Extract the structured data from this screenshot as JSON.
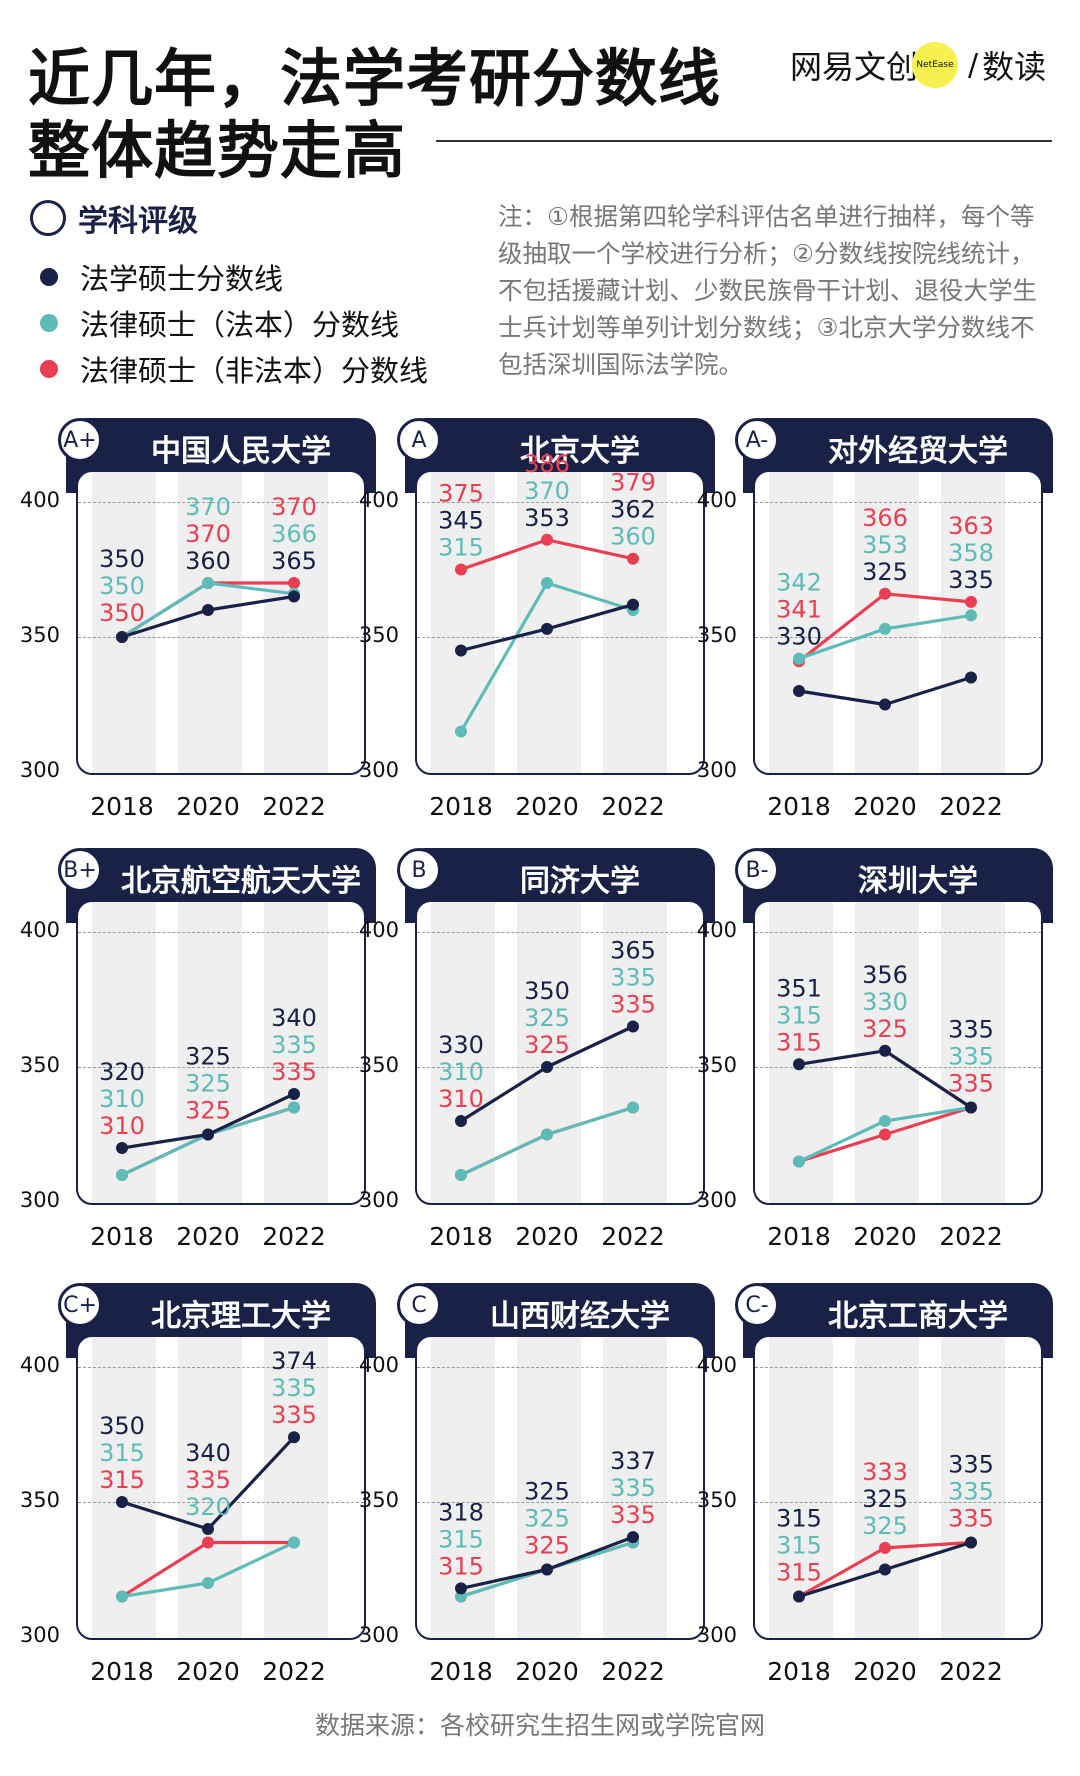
{
  "title": {
    "line1": "近几年，法学考研分数线",
    "line2": "整体趋势走高"
  },
  "brand": {
    "name": "网易文创",
    "dot": "NetEase",
    "sep": "/",
    "sub": "数读"
  },
  "legend": {
    "title": "学科评级",
    "items": [
      {
        "label": "法学硕士分数线",
        "color": "#1a2146"
      },
      {
        "label": "法律硕士（法本）分数线",
        "color": "#5ebcb8"
      },
      {
        "label": "法律硕士（非法本）分数线",
        "color": "#ea3f52"
      }
    ]
  },
  "note": "注：①根据第四轮学科评估名单进行抽样，每个等级抽取一个学校进行分析；②分数线按院线统计，不包括援藏计划、少数民族骨干计划、退役大学生士兵计划等单列计划分数线；③北京大学分数线不包括深圳国际法学院。",
  "source": "数据来源：各校研究生招生网或学院官网",
  "colors": {
    "navy": "#1a2146",
    "teal": "#5ebcb8",
    "red": "#ea3f52"
  },
  "chart_data": [
    {
      "type": "line",
      "grade": "A+",
      "title": "中国人民大学",
      "x": [
        "2018",
        "2020",
        "2022"
      ],
      "yticks": [
        400,
        350,
        300
      ],
      "ylim": [
        300,
        400
      ],
      "series": [
        {
          "name": "法学硕士分数线",
          "values": [
            350,
            360,
            365
          ]
        },
        {
          "name": "法律硕士（法本）分数线",
          "values": [
            350,
            370,
            366
          ]
        },
        {
          "name": "法律硕士（非法本）分数线",
          "values": [
            350,
            370,
            370
          ]
        }
      ]
    },
    {
      "type": "line",
      "grade": "A",
      "title": "北京大学",
      "x": [
        "2018",
        "2020",
        "2022"
      ],
      "yticks": [
        400,
        350,
        300
      ],
      "ylim": [
        300,
        400
      ],
      "series": [
        {
          "name": "法学硕士分数线",
          "values": [
            345,
            353,
            362
          ]
        },
        {
          "name": "法律硕士（法本）分数线",
          "values": [
            315,
            370,
            360
          ]
        },
        {
          "name": "法律硕士（非法本）分数线",
          "values": [
            375,
            386,
            379
          ]
        }
      ]
    },
    {
      "type": "line",
      "grade": "A-",
      "title": "对外经贸大学",
      "x": [
        "2018",
        "2020",
        "2022"
      ],
      "yticks": [
        400,
        350,
        300
      ],
      "ylim": [
        300,
        400
      ],
      "series": [
        {
          "name": "法学硕士分数线",
          "values": [
            330,
            325,
            335
          ]
        },
        {
          "name": "法律硕士（法本）分数线",
          "values": [
            342,
            353,
            358
          ]
        },
        {
          "name": "法律硕士（非法本）分数线",
          "values": [
            341,
            366,
            363
          ]
        }
      ]
    },
    {
      "type": "line",
      "grade": "B+",
      "title": "北京航空航天大学",
      "x": [
        "2018",
        "2020",
        "2022"
      ],
      "yticks": [
        400,
        350,
        300
      ],
      "ylim": [
        300,
        400
      ],
      "series": [
        {
          "name": "法学硕士分数线",
          "values": [
            320,
            325,
            340
          ]
        },
        {
          "name": "法律硕士（法本）分数线",
          "values": [
            310,
            325,
            335
          ]
        },
        {
          "name": "法律硕士（非法本）分数线",
          "values": [
            310,
            325,
            335
          ]
        }
      ]
    },
    {
      "type": "line",
      "grade": "B",
      "title": "同济大学",
      "x": [
        "2018",
        "2020",
        "2022"
      ],
      "yticks": [
        400,
        350,
        300
      ],
      "ylim": [
        300,
        400
      ],
      "series": [
        {
          "name": "法学硕士分数线",
          "values": [
            330,
            350,
            365
          ]
        },
        {
          "name": "法律硕士（法本）分数线",
          "values": [
            310,
            325,
            335
          ]
        },
        {
          "name": "法律硕士（非法本）分数线",
          "values": [
            310,
            325,
            335
          ]
        }
      ]
    },
    {
      "type": "line",
      "grade": "B-",
      "title": "深圳大学",
      "x": [
        "2018",
        "2020",
        "2022"
      ],
      "yticks": [
        400,
        350,
        300
      ],
      "ylim": [
        300,
        400
      ],
      "series": [
        {
          "name": "法学硕士分数线",
          "values": [
            351,
            356,
            335
          ]
        },
        {
          "name": "法律硕士（法本）分数线",
          "values": [
            315,
            330,
            335
          ]
        },
        {
          "name": "法律硕士（非法本）分数线",
          "values": [
            315,
            325,
            335
          ]
        }
      ]
    },
    {
      "type": "line",
      "grade": "C+",
      "title": "北京理工大学",
      "x": [
        "2018",
        "2020",
        "2022"
      ],
      "yticks": [
        400,
        350,
        300
      ],
      "ylim": [
        300,
        400
      ],
      "series": [
        {
          "name": "法学硕士分数线",
          "values": [
            350,
            340,
            374
          ]
        },
        {
          "name": "法律硕士（法本）分数线",
          "values": [
            315,
            320,
            335
          ]
        },
        {
          "name": "法律硕士（非法本）分数线",
          "values": [
            315,
            335,
            335
          ]
        }
      ]
    },
    {
      "type": "line",
      "grade": "C",
      "title": "山西财经大学",
      "x": [
        "2018",
        "2020",
        "2022"
      ],
      "yticks": [
        400,
        350,
        300
      ],
      "ylim": [
        300,
        400
      ],
      "series": [
        {
          "name": "法学硕士分数线",
          "values": [
            318,
            325,
            337
          ]
        },
        {
          "name": "法律硕士（法本）分数线",
          "values": [
            315,
            325,
            335
          ]
        },
        {
          "name": "法律硕士（非法本）分数线",
          "values": [
            315,
            325,
            335
          ]
        }
      ]
    },
    {
      "type": "line",
      "grade": "C-",
      "title": "北京工商大学",
      "x": [
        "2018",
        "2020",
        "2022"
      ],
      "yticks": [
        400,
        350,
        300
      ],
      "ylim": [
        300,
        400
      ],
      "series": [
        {
          "name": "法学硕士分数线",
          "values": [
            315,
            325,
            335
          ]
        },
        {
          "name": "法律硕士（法本）分数线",
          "values": [
            315,
            325,
            335
          ]
        },
        {
          "name": "法律硕士（非法本）分数线",
          "values": [
            315,
            333,
            335
          ]
        }
      ]
    }
  ]
}
